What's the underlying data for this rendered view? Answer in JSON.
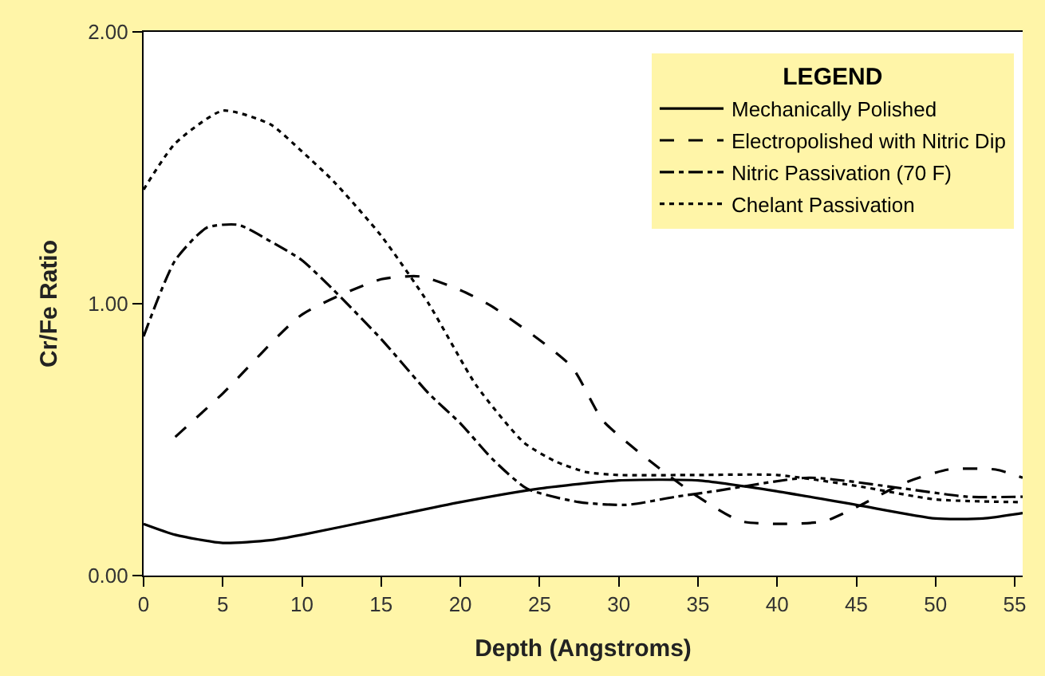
{
  "chart_data": {
    "type": "line",
    "xlabel": "Depth (Angstroms)",
    "ylabel": "Cr/Fe Ratio",
    "legend_title": "LEGEND",
    "legend": "top right",
    "marker": "none",
    "xlim": [
      0,
      55.5
    ],
    "xticks": [
      0,
      5,
      10,
      15,
      20,
      25,
      30,
      35,
      40,
      45,
      50,
      55
    ],
    "ylim": [
      0,
      2
    ],
    "yticks": [
      {
        "value": 0,
        "label": "0.00"
      },
      {
        "value": 1,
        "label": "1.00"
      },
      {
        "value": 2,
        "label": "2.00"
      }
    ],
    "series": [
      {
        "name": "Mechanically Polished",
        "color": "#000000",
        "line_style": "solid",
        "x": [
          0,
          2,
          5,
          8,
          10,
          15,
          20,
          25,
          30,
          35,
          40,
          45,
          50,
          53,
          55.5
        ],
        "values": [
          0.19,
          0.15,
          0.12,
          0.13,
          0.15,
          0.21,
          0.27,
          0.32,
          0.35,
          0.35,
          0.31,
          0.26,
          0.21,
          0.21,
          0.23
        ]
      },
      {
        "name": "Electropolished with Nitric Dip",
        "color": "#000000",
        "line_style": "dashed",
        "x": [
          2,
          5,
          10,
          15,
          17.5,
          20,
          22,
          27,
          29,
          32,
          35,
          37.7,
          40.3,
          43,
          45.3,
          48,
          50.8,
          53.8,
          55.5
        ],
        "values": [
          0.51,
          0.67,
          0.96,
          1.09,
          1.1,
          1.05,
          0.99,
          0.77,
          0.57,
          0.42,
          0.29,
          0.2,
          0.19,
          0.2,
          0.26,
          0.34,
          0.39,
          0.39,
          0.36
        ]
      },
      {
        "name": "Nitric Passivation (70 F)",
        "color": "#000000",
        "line_style": "dashdot",
        "x": [
          0,
          2,
          4,
          6,
          8,
          10,
          12,
          15,
          18,
          20,
          22,
          24.2,
          27.5,
          30.5,
          33.6,
          36,
          42,
          48,
          52,
          55.5
        ],
        "values": [
          0.88,
          1.16,
          1.28,
          1.29,
          1.23,
          1.16,
          1.05,
          0.87,
          0.67,
          0.56,
          0.43,
          0.32,
          0.27,
          0.26,
          0.29,
          0.31,
          0.36,
          0.32,
          0.29,
          0.29
        ]
      },
      {
        "name": "Chelant Passivation",
        "color": "#000000",
        "line_style": "dotted",
        "x": [
          0,
          2,
          5,
          8,
          10,
          12,
          15,
          18,
          21,
          24,
          26,
          28,
          30,
          35,
          40,
          45,
          50,
          55.5
        ],
        "values": [
          1.42,
          1.59,
          1.71,
          1.66,
          1.56,
          1.45,
          1.25,
          1.0,
          0.7,
          0.49,
          0.42,
          0.38,
          0.37,
          0.37,
          0.37,
          0.33,
          0.28,
          0.27
        ]
      }
    ]
  }
}
